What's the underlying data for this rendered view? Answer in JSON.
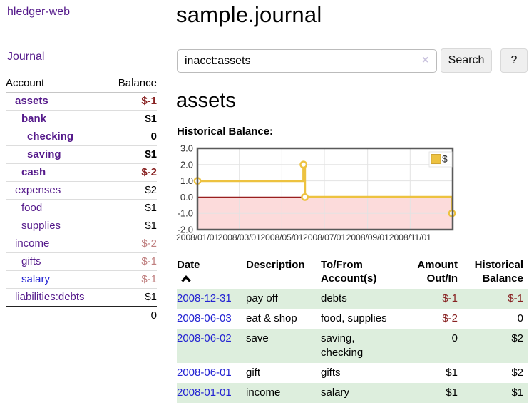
{
  "colors": {
    "accent_purple": "#551a8b",
    "link_blue": "#2323d2",
    "negative_red": "#882222",
    "negative_soft_red": "#c08080",
    "table_row_green": "#ddeedd",
    "chart_line_gold": "#edc240",
    "chart_negative_fill_pink": "#fcdbdb",
    "chart_zero_line_red": "#991f1f"
  },
  "sidebar": {
    "app_title": "hledger-web",
    "nav": {
      "journal_label": "Journal"
    },
    "accounts_table": {
      "col_account": "Account",
      "col_balance": "Balance",
      "rows": [
        {
          "name": "assets",
          "balance": "$-1",
          "depth": 1,
          "bold": true,
          "link": "visited",
          "balance_style": "neg-strong"
        },
        {
          "name": "bank",
          "balance": "$1",
          "depth": 2,
          "bold": true,
          "link": "visited",
          "balance_style": "pos-strong"
        },
        {
          "name": "checking",
          "balance": "0",
          "depth": 3,
          "bold": true,
          "link": "visited",
          "balance_style": "pos-strong"
        },
        {
          "name": "saving",
          "balance": "$1",
          "depth": 3,
          "bold": true,
          "link": "visited",
          "balance_style": "pos-strong"
        },
        {
          "name": "cash",
          "balance": "$-2",
          "depth": 2,
          "bold": true,
          "link": "visited",
          "balance_style": "neg-strong"
        },
        {
          "name": "expenses",
          "balance": "$2",
          "depth": 1,
          "bold": false,
          "link": "visited",
          "balance_style": "pos"
        },
        {
          "name": "food",
          "balance": "$1",
          "depth": 2,
          "bold": false,
          "link": "visited",
          "balance_style": "pos"
        },
        {
          "name": "supplies",
          "balance": "$1",
          "depth": 2,
          "bold": false,
          "link": "visited",
          "balance_style": "pos"
        },
        {
          "name": "income",
          "balance": "$-2",
          "depth": 1,
          "bold": false,
          "link": "visited",
          "balance_style": "neg-soft"
        },
        {
          "name": "gifts",
          "balance": "$-1",
          "depth": 2,
          "bold": false,
          "link": "visited",
          "balance_style": "neg-soft"
        },
        {
          "name": "salary",
          "balance": "$-1",
          "depth": 2,
          "bold": false,
          "link": "unvisited",
          "balance_style": "neg-soft"
        },
        {
          "name": "liabilities:debts",
          "balance": "$1",
          "depth": 1,
          "bold": false,
          "link": "visited",
          "balance_style": "pos"
        }
      ],
      "total": "0"
    }
  },
  "main": {
    "title": "sample.journal",
    "search": {
      "value": "inacct:assets",
      "clear_icon": "×",
      "button_label": "Search",
      "help_label": "?"
    },
    "account_heading": "assets",
    "chart_label": "Historical Balance:",
    "register_table": {
      "headers": [
        {
          "line1": "Date",
          "line2": "",
          "align": "left",
          "sorted_ascending": true
        },
        {
          "line1": "Description",
          "line2": "",
          "align": "left"
        },
        {
          "line1": "To/From",
          "line2": "Account(s)",
          "align": "left"
        },
        {
          "line1": "Amount",
          "line2": "Out/In",
          "align": "right"
        },
        {
          "line1": "Historical",
          "line2": "Balance",
          "align": "right"
        }
      ],
      "rows": [
        {
          "date": "2008-12-31",
          "description": "pay off",
          "accounts": "debts",
          "amount": "$-1",
          "amount_neg": true,
          "balance": "$-1",
          "balance_neg": true
        },
        {
          "date": "2008-06-03",
          "description": "eat & shop",
          "accounts": "food, supplies",
          "amount": "$-2",
          "amount_neg": true,
          "balance": "0",
          "balance_neg": false
        },
        {
          "date": "2008-06-02",
          "description": "save",
          "accounts": "saving, checking",
          "amount": "0",
          "amount_neg": false,
          "balance": "$2",
          "balance_neg": false
        },
        {
          "date": "2008-06-01",
          "description": "gift",
          "accounts": "gifts",
          "amount": "$1",
          "amount_neg": false,
          "balance": "$2",
          "balance_neg": false
        },
        {
          "date": "2008-01-01",
          "description": "income",
          "accounts": "salary",
          "amount": "$1",
          "amount_neg": false,
          "balance": "$1",
          "balance_neg": false
        }
      ]
    }
  },
  "chart_data": {
    "type": "line",
    "title": "Historical Balance",
    "step": true,
    "series": [
      {
        "name": "$",
        "color": "#edc240",
        "points": [
          {
            "x": "2008-01-01",
            "y": 1
          },
          {
            "x": "2008-06-01",
            "y": 2
          },
          {
            "x": "2008-06-03",
            "y": 0
          },
          {
            "x": "2008-12-31",
            "y": -1
          }
        ]
      }
    ],
    "xlim": [
      "2008-01-01",
      "2009-01-01"
    ],
    "ylim": [
      -2,
      3
    ],
    "yticks": [
      "3.0",
      "2.0",
      "1.0",
      "0.0",
      "-1.0",
      "-2.0"
    ],
    "xticks": [
      {
        "x": "2008-01-01",
        "label": "2008/01/01"
      },
      {
        "x": "2008-03-01",
        "label": "2008/03/01"
      },
      {
        "x": "2008-05-01",
        "label": "2008/05/01"
      },
      {
        "x": "2008-07-01",
        "label": "2008/07/01"
      },
      {
        "x": "2008-09-01",
        "label": "2008/09/01"
      },
      {
        "x": "2008-11-01",
        "label": "2008/11/01"
      }
    ],
    "grid": true,
    "legend_position": "top-right",
    "negative_region_shaded": true
  }
}
